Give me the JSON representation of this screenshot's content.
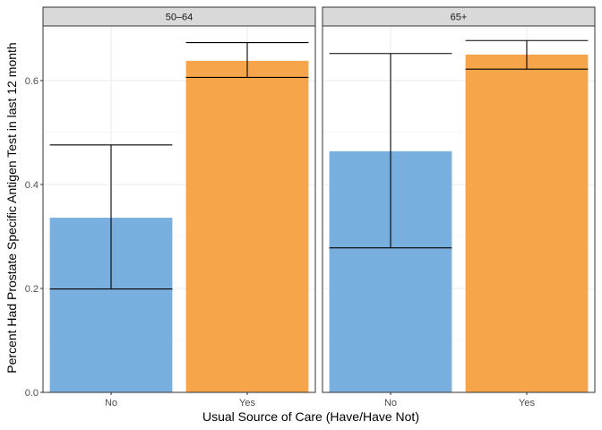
{
  "chart_data": {
    "type": "bar",
    "xlabel": "Usual Source of Care (Have/Have Not)",
    "ylabel": "Percent Had Prostate Specific Antigen Test in last 12 month",
    "categories": [
      "No",
      "Yes"
    ],
    "ylim": [
      0,
      0.705
    ],
    "yticks": [
      "0.0",
      "0.2",
      "0.4",
      "0.6"
    ],
    "grid": true,
    "colors": {
      "No": "#78AFDF",
      "Yes": "#F7A54B"
    },
    "panels": [
      {
        "label": "50–64",
        "values": [
          0.336,
          0.638
        ],
        "error_low": [
          0.199,
          0.606
        ],
        "error_high": [
          0.476,
          0.673
        ]
      },
      {
        "label": "65+",
        "values": [
          0.464,
          0.65
        ],
        "error_low": [
          0.278,
          0.622
        ],
        "error_high": [
          0.652,
          0.677
        ]
      }
    ]
  }
}
